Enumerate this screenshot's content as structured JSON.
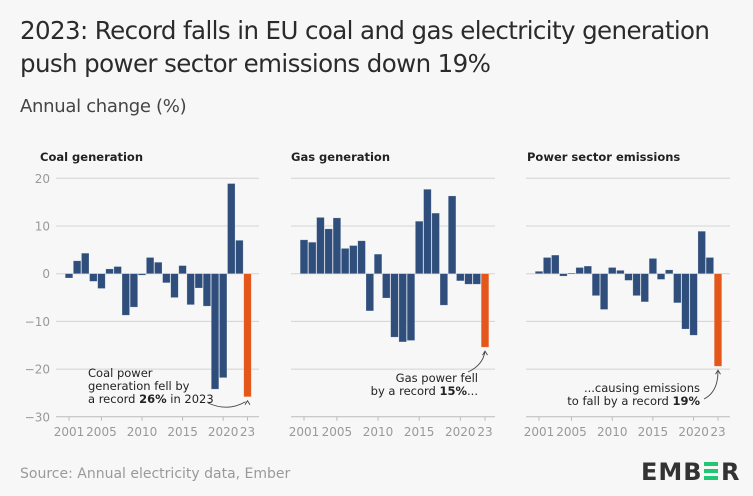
{
  "title": "2023: Record falls in EU coal and gas electricity generation push power sector emissions down 19%",
  "subtitle": "Annual change (%)",
  "source": "Source: Annual electricity data, Ember",
  "logo": "EMBER",
  "colors": {
    "bar": "#2f4e7b",
    "highlight": "#e4571b",
    "grid": "#d4d4d4",
    "logo_accent": "#22c773"
  },
  "chart_data": [
    {
      "type": "bar",
      "title": "Coal generation",
      "ylim": [
        -30,
        20
      ],
      "yticks": [
        20,
        10,
        0,
        -10,
        -20,
        -30
      ],
      "ytick_labels": [
        "20",
        "10",
        "0",
        "−10",
        "−20",
        "−30"
      ],
      "xtick_labels": [
        "2001",
        "2005",
        "2010",
        "2015",
        "2020",
        "23"
      ],
      "xtick_years": [
        2001,
        2005,
        2010,
        2015,
        2020,
        2023
      ],
      "x": [
        2001,
        2002,
        2003,
        2004,
        2005,
        2006,
        2007,
        2008,
        2009,
        2010,
        2011,
        2012,
        2013,
        2014,
        2015,
        2016,
        2017,
        2018,
        2019,
        2020,
        2021,
        2022,
        2023
      ],
      "values": [
        -0.9,
        2.7,
        4.3,
        -1.6,
        -3.1,
        1.0,
        1.5,
        -8.7,
        -7.0,
        -0.3,
        3.4,
        2.4,
        -1.9,
        -5.0,
        1.7,
        -6.5,
        -3.0,
        -6.8,
        -24.2,
        -21.8,
        18.9,
        7.0,
        -25.8
      ],
      "highlight_year": 2023,
      "annotation": {
        "lines": [
          [
            "Coal power",
            ""
          ],
          [
            "generation fell by",
            ""
          ],
          [
            "a record ",
            "26%",
            " in 2023"
          ]
        ]
      }
    },
    {
      "type": "bar",
      "title": "Gas generation",
      "ylim": [
        -30,
        20
      ],
      "yticks": [
        20,
        10,
        0,
        -10,
        -20,
        -30
      ],
      "xtick_labels": [
        "2001",
        "2005",
        "2010",
        "2015",
        "2020",
        "23"
      ],
      "xtick_years": [
        2001,
        2005,
        2010,
        2015,
        2020,
        2023
      ],
      "x": [
        2001,
        2002,
        2003,
        2004,
        2005,
        2006,
        2007,
        2008,
        2009,
        2010,
        2011,
        2012,
        2013,
        2014,
        2015,
        2016,
        2017,
        2018,
        2019,
        2020,
        2021,
        2022,
        2023
      ],
      "values": [
        7.1,
        6.6,
        11.8,
        9.4,
        11.7,
        5.3,
        5.9,
        6.9,
        -7.8,
        4.1,
        -5.1,
        -13.3,
        -14.3,
        -14.0,
        11.0,
        17.7,
        12.7,
        -6.6,
        16.3,
        -1.5,
        -2.2,
        -2.2,
        -15.4
      ],
      "highlight_year": 2023,
      "annotation": {
        "lines": [
          [
            "Gas power fell",
            ""
          ],
          [
            "by a record ",
            "15%",
            "..."
          ]
        ]
      }
    },
    {
      "type": "bar",
      "title": "Power sector emissions",
      "ylim": [
        -30,
        20
      ],
      "yticks": [
        20,
        10,
        0,
        -10,
        -20,
        -30
      ],
      "xtick_labels": [
        "2001",
        "2005",
        "2010",
        "2015",
        "2020",
        "23"
      ],
      "xtick_years": [
        2001,
        2005,
        2010,
        2015,
        2020,
        2023
      ],
      "x": [
        2001,
        2002,
        2003,
        2004,
        2005,
        2006,
        2007,
        2008,
        2009,
        2010,
        2011,
        2012,
        2013,
        2014,
        2015,
        2016,
        2017,
        2018,
        2019,
        2020,
        2021,
        2022,
        2023
      ],
      "values": [
        0.5,
        3.4,
        3.9,
        -0.5,
        0.1,
        1.3,
        1.6,
        -4.6,
        -7.5,
        1.3,
        0.7,
        -1.4,
        -4.6,
        -5.9,
        3.2,
        -1.2,
        0.8,
        -6.1,
        -11.6,
        -12.9,
        8.9,
        3.4,
        -19.4
      ],
      "highlight_year": 2023,
      "annotation": {
        "lines": [
          [
            "...causing emissions",
            ""
          ],
          [
            "to fall by a record ",
            "19%",
            ""
          ]
        ]
      }
    }
  ]
}
